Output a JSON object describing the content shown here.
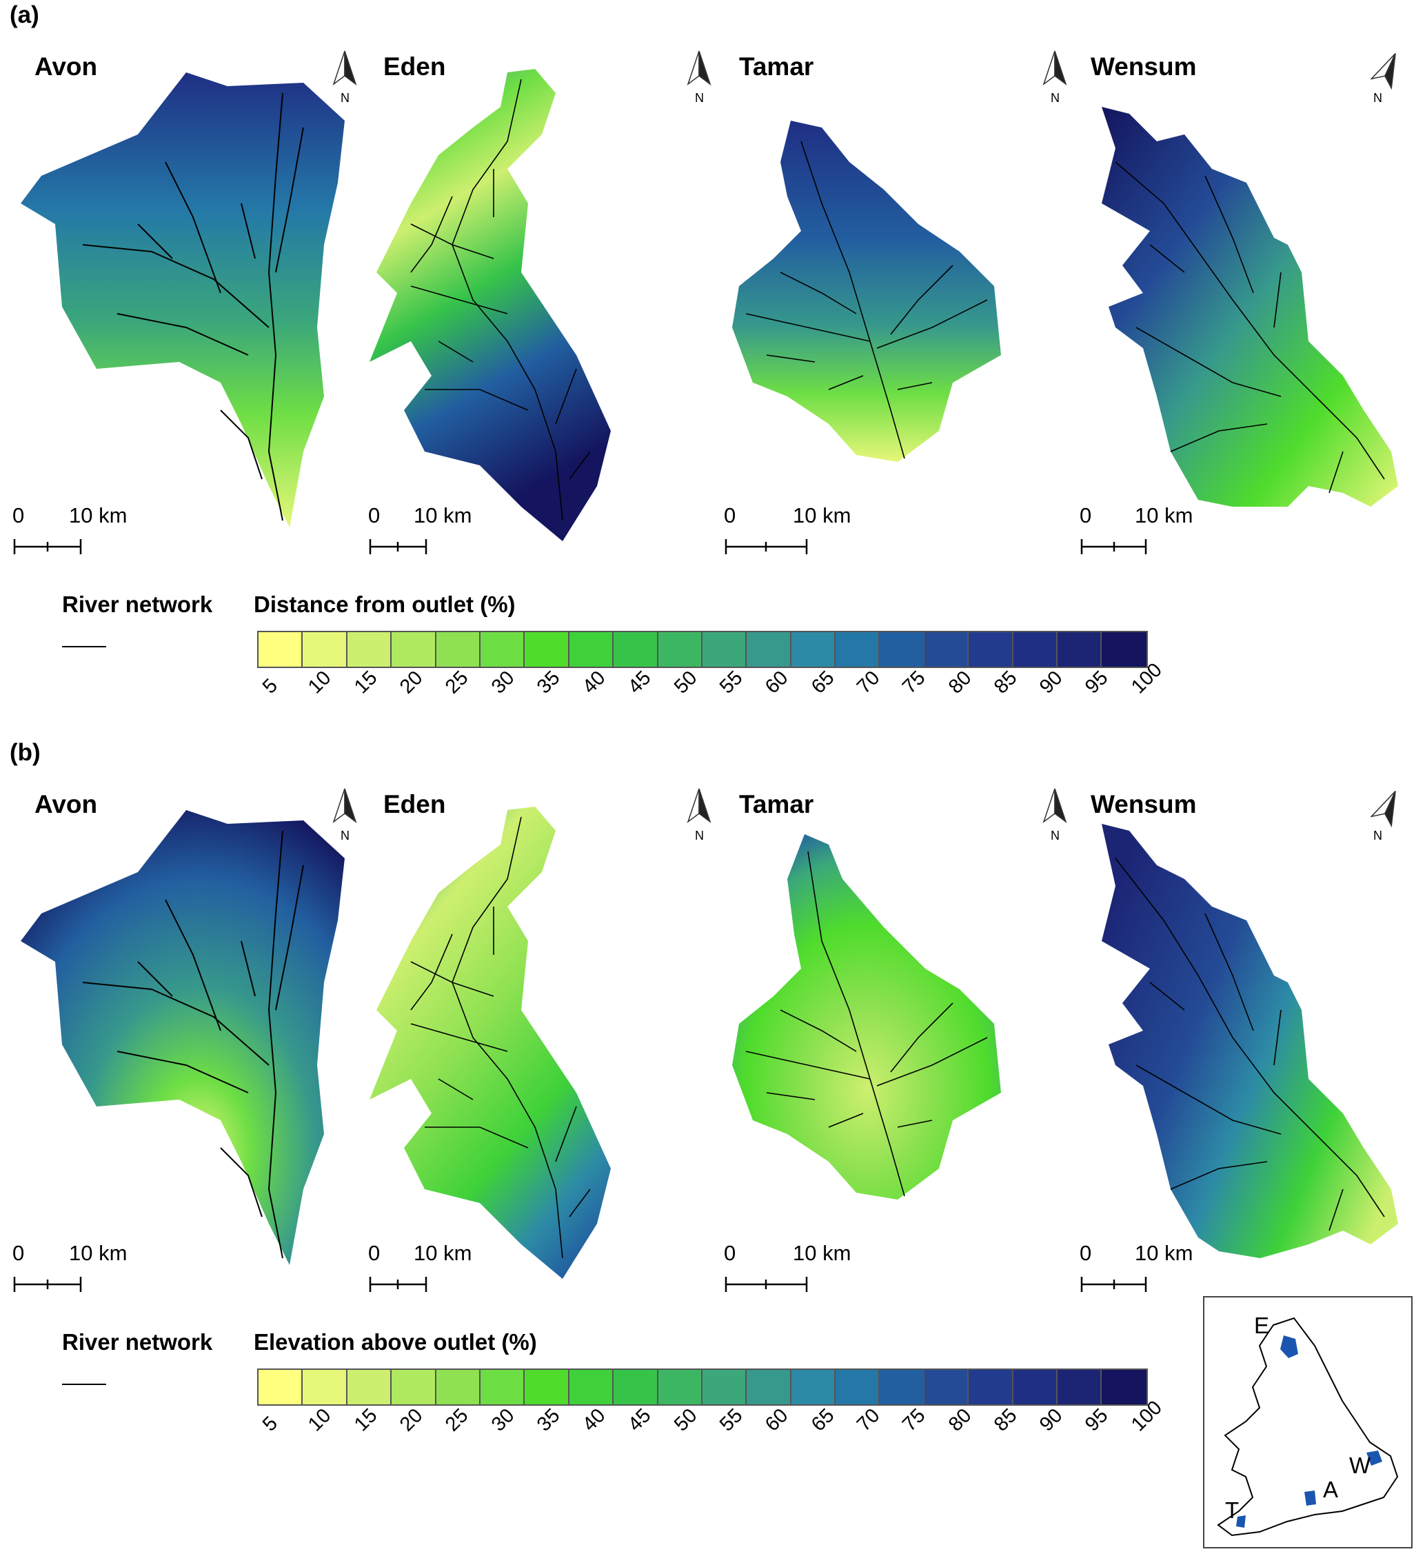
{
  "panels": [
    {
      "letter": "(a)",
      "legend_title": "Distance from outlet (%)",
      "river_label": "River network",
      "catchments": [
        {
          "name": "Avon",
          "scale_zero": "0",
          "scale_ten": "10 km",
          "north": "N"
        },
        {
          "name": "Eden",
          "scale_zero": "0",
          "scale_ten": "10 km",
          "north": "N"
        },
        {
          "name": "Tamar",
          "scale_zero": "0",
          "scale_ten": "10 km",
          "north": "N"
        },
        {
          "name": "Wensum",
          "scale_zero": "0",
          "scale_ten": "10 km",
          "north": "N"
        }
      ]
    },
    {
      "letter": "(b)",
      "legend_title": "Elevation above outlet (%)",
      "river_label": "River network",
      "catchments": [
        {
          "name": "Avon",
          "scale_zero": "0",
          "scale_ten": "10 km",
          "north": "N"
        },
        {
          "name": "Eden",
          "scale_zero": "0",
          "scale_ten": "10 km",
          "north": "N"
        },
        {
          "name": "Tamar",
          "scale_zero": "0",
          "scale_ten": "10 km",
          "north": "N"
        },
        {
          "name": "Wensum",
          "scale_zero": "0",
          "scale_ten": "10 km",
          "north": "N"
        }
      ]
    }
  ],
  "colorbar": {
    "ticks": [
      "5",
      "10",
      "15",
      "20",
      "25",
      "30",
      "35",
      "40",
      "45",
      "50",
      "55",
      "60",
      "65",
      "70",
      "75",
      "80",
      "85",
      "90",
      "95",
      "100"
    ],
    "colors": [
      "#ffff80",
      "#e6f779",
      "#cdef6f",
      "#afe95f",
      "#8fe152",
      "#6ede45",
      "#4fdc2c",
      "#3ed139",
      "#36c34a",
      "#3cb663",
      "#3ba77a",
      "#37988c",
      "#2d8aa6",
      "#2478a8",
      "#225fa0",
      "#244b96",
      "#223b8e",
      "#1f2f84",
      "#1c2474",
      "#14155e"
    ]
  },
  "inset": {
    "labels": [
      "E",
      "W",
      "A",
      "T"
    ],
    "catchment_color": "#1a56b0"
  }
}
